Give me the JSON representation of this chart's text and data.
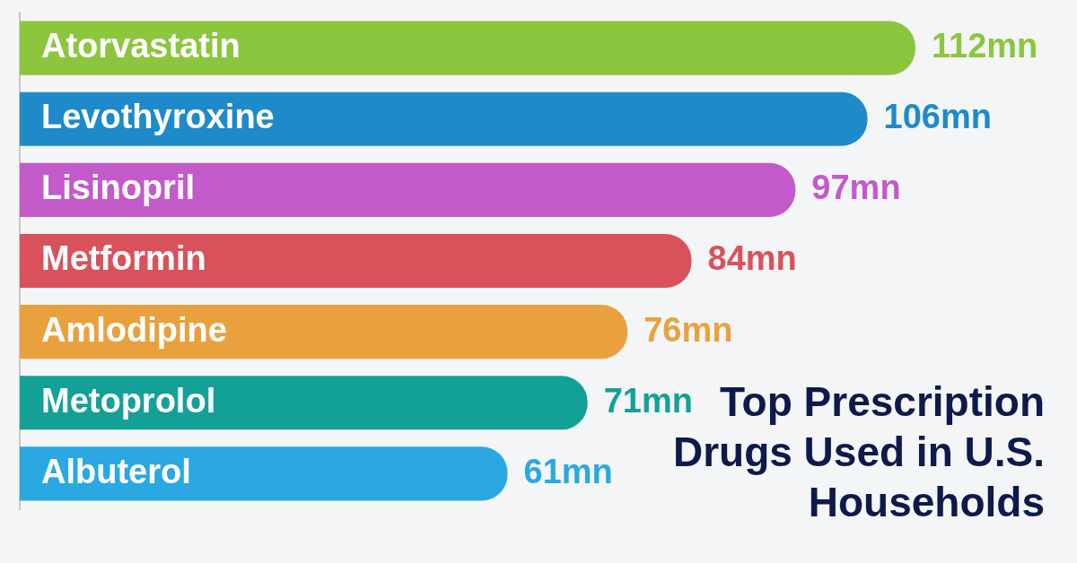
{
  "chart_data": {
    "type": "bar",
    "orientation": "horizontal",
    "title": "Top Prescription Drugs Used in U.S. Households",
    "categories": [
      "Atorvastatin",
      "Levothyroxine",
      "Lisinopril",
      "Metformin",
      "Amlodipine",
      "Metoprolol",
      "Albuterol"
    ],
    "values": [
      112,
      106,
      97,
      84,
      76,
      71,
      61
    ],
    "colors": [
      "#8cc63f",
      "#1f8ac9",
      "#c25bc9",
      "#d9515b",
      "#e9a13f",
      "#13a197",
      "#2ba8e1"
    ],
    "value_labels": [
      "112mn",
      "106mn",
      "97mn",
      "84mn",
      "76mn",
      "71mn",
      "61mn"
    ],
    "tick_labels": "y"
  }
}
